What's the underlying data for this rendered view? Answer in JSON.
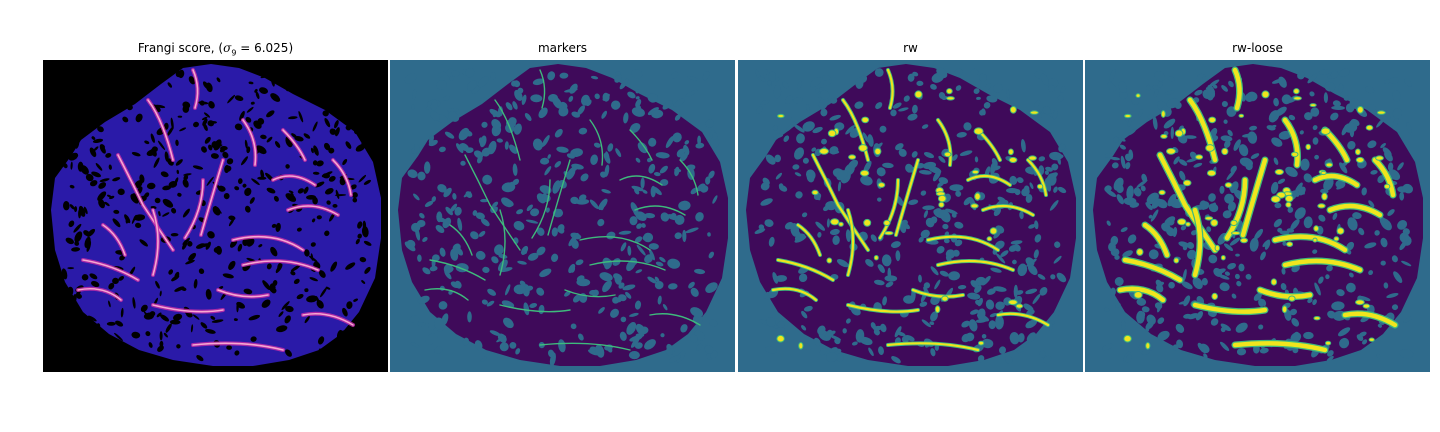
{
  "panels": [
    {
      "title_prefix": "Frangi score, (",
      "title_sigma": "σ",
      "title_sub": "9",
      "title_suffix": " = 6.025)",
      "kind": "frangi",
      "colors": {
        "background": "#000000",
        "texture": "#2a1aa8",
        "vessel_mid": "#c02da8",
        "vessel_high": "#f7a6d0"
      }
    },
    {
      "title": "markers",
      "kind": "markers",
      "colors": {
        "background": "#2f6b8c",
        "region": "#3f0a5a",
        "marker": "#3eba7c"
      }
    },
    {
      "title": "rw",
      "kind": "rw",
      "colors": {
        "background": "#2f6b8c",
        "region": "#3f0a5a",
        "vessel_outline": "#3eba7c",
        "vessel_fill": "#f0e51e"
      }
    },
    {
      "title": "rw-loose",
      "kind": "rwloose",
      "colors": {
        "background": "#2f6b8c",
        "region": "#3f0a5a",
        "vessel_outline": "#3eba7c",
        "vessel_fill": "#f0e51e"
      }
    }
  ]
}
